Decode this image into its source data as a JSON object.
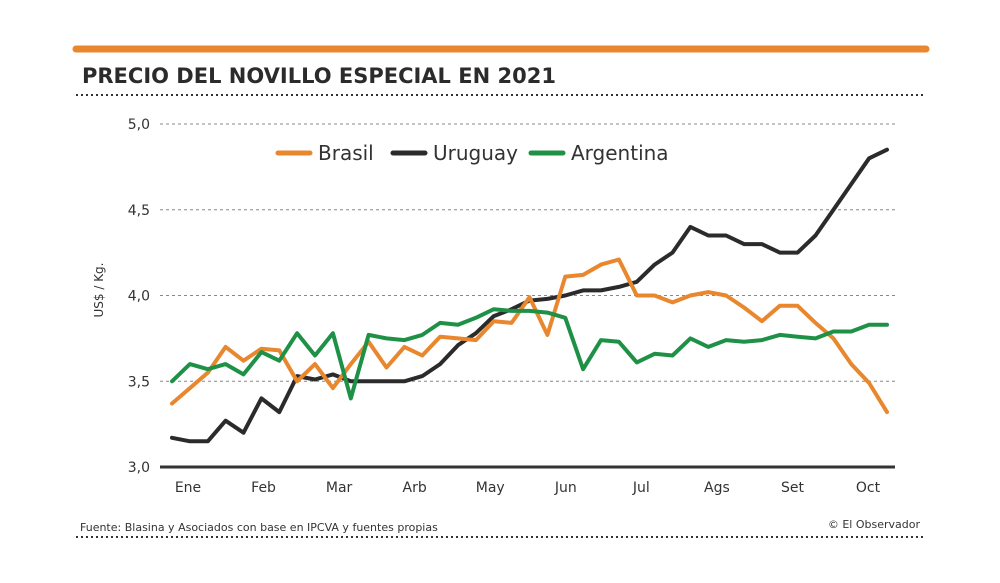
{
  "chart_data": {
    "type": "line",
    "title": "PRECIO DEL NOVILLO ESPECIAL EN 2021",
    "ylabel": "US$ / Kg.",
    "xlabel": "",
    "ylim": [
      3.0,
      5.0
    ],
    "yticks": [
      "3,0",
      "3,5",
      "4,0",
      "4,5",
      "5,0"
    ],
    "ytick_values": [
      3.0,
      3.5,
      4.0,
      4.5,
      5.0
    ],
    "month_labels": [
      "Ene",
      "Feb",
      "Mar",
      "Arb",
      "May",
      "Jun",
      "Jul",
      "Ags",
      "Set",
      "Oct"
    ],
    "colors": {
      "Brasil": "#e8872e",
      "Uruguay": "#2b2b2b",
      "Argentina": "#1f9146",
      "accent": "#e8872e"
    },
    "legend_position": "top-center",
    "series": [
      {
        "name": "Brasil",
        "values": [
          3.37,
          3.46,
          3.55,
          3.7,
          3.62,
          3.69,
          3.68,
          3.5,
          3.6,
          3.46,
          3.6,
          3.73,
          3.58,
          3.7,
          3.65,
          3.76,
          3.75,
          3.74,
          3.85,
          3.84,
          3.99,
          3.77,
          4.11,
          4.12,
          4.18,
          4.21,
          4.0,
          4.0,
          3.96,
          4.0,
          4.02,
          4.0,
          3.93,
          3.85,
          3.94,
          3.94,
          3.84,
          3.75,
          3.6,
          3.49,
          3.32
        ]
      },
      {
        "name": "Uruguay",
        "values": [
          3.17,
          3.15,
          3.15,
          3.27,
          3.2,
          3.4,
          3.32,
          3.53,
          3.51,
          3.54,
          3.5,
          3.5,
          3.5,
          3.5,
          3.53,
          3.6,
          3.71,
          3.78,
          3.88,
          3.92,
          3.97,
          3.98,
          4.0,
          4.03,
          4.03,
          4.05,
          4.08,
          4.18,
          4.25,
          4.4,
          4.35,
          4.35,
          4.3,
          4.3,
          4.25,
          4.25,
          4.35,
          4.5,
          4.65,
          4.8,
          4.85
        ]
      },
      {
        "name": "Argentina",
        "values": [
          3.5,
          3.6,
          3.57,
          3.6,
          3.54,
          3.67,
          3.62,
          3.78,
          3.65,
          3.78,
          3.4,
          3.77,
          3.75,
          3.74,
          3.77,
          3.84,
          3.83,
          3.87,
          3.92,
          3.91,
          3.91,
          3.9,
          3.87,
          3.57,
          3.74,
          3.73,
          3.61,
          3.66,
          3.65,
          3.75,
          3.7,
          3.74,
          3.73,
          3.74,
          3.77,
          3.76,
          3.75,
          3.79,
          3.79,
          3.83,
          3.83
        ]
      }
    ]
  },
  "footer": {
    "source": "Fuente: Blasina y Asociados con base en IPCVA y fuentes propias",
    "credit": "© El Observador"
  }
}
